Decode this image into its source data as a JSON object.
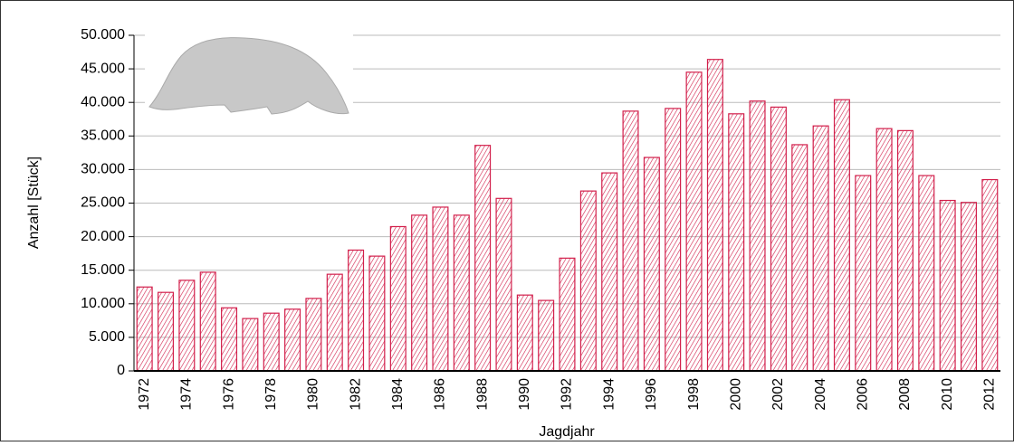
{
  "chart_data": {
    "type": "bar",
    "y_label": "Anzahl [Stück]",
    "x_label": "Jagdjahr",
    "categories": [
      "1972",
      null,
      "1974",
      null,
      "1976",
      null,
      "1978",
      null,
      "1980",
      null,
      "1982",
      null,
      "1984",
      null,
      "1986",
      null,
      "1988",
      null,
      "1990",
      null,
      "1992",
      null,
      "1994",
      null,
      "1996",
      null,
      "1998",
      null,
      "2000",
      null,
      "2002",
      null,
      "2004",
      null,
      "2006",
      null,
      "2008",
      null,
      "2010",
      null,
      "2012"
    ],
    "values": [
      12500,
      11700,
      13500,
      14700,
      9400,
      7800,
      8600,
      9200,
      10800,
      14400,
      18000,
      17100,
      21500,
      23200,
      24400,
      23200,
      33600,
      25700,
      11300,
      10500,
      16800,
      26800,
      29500,
      38700,
      31800,
      39100,
      44500,
      46400,
      38300,
      40200,
      39300,
      33700,
      36500,
      40400,
      29100,
      36100,
      35800,
      29100,
      25400,
      25100,
      28500
    ],
    "color": "#d21f4b",
    "ylim": [
      0,
      50000
    ],
    "yticks": [
      0,
      {
        "value": 5000,
        "label": "5.000"
      },
      {
        "value": 10000,
        "label": "10.000"
      },
      {
        "value": 15000,
        "label": "15.000"
      },
      {
        "value": 20000,
        "label": "20.000"
      },
      {
        "value": 25000,
        "label": "25.000"
      },
      {
        "value": 30000,
        "label": "30.000"
      },
      {
        "value": 35000,
        "label": "35.000"
      },
      {
        "value": 40000,
        "label": "40.000"
      },
      {
        "value": 45000,
        "label": "45.000"
      },
      {
        "value": 50000,
        "label": "50.000"
      }
    ],
    "grid": true
  }
}
